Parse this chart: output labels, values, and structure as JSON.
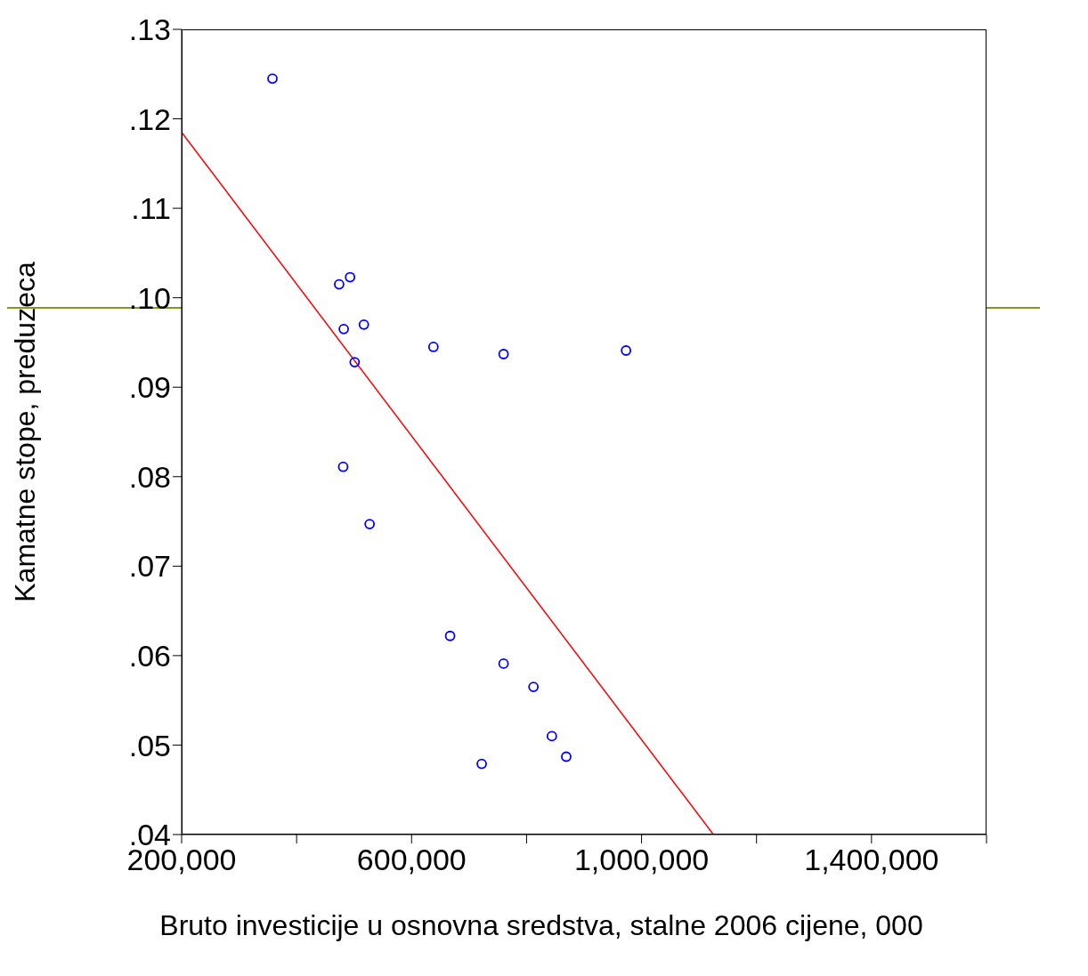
{
  "chart_data": {
    "type": "scatter",
    "xlabel": "Bruto investicije u osnovna sredstva, stalne 2006 cijene, 000",
    "ylabel": "Kamatne stope, preduzeca",
    "x": [
      358000,
      474000,
      493000,
      482000,
      517000,
      501000,
      638000,
      760000,
      973000,
      481000,
      527000,
      667000,
      760000,
      812000,
      844000,
      869000,
      722000
    ],
    "series": [
      {
        "color": "#0000ff",
        "marker": "circle",
        "values": [
          0.1245,
          0.1015,
          0.1023,
          0.0965,
          0.097,
          0.0928,
          0.0945,
          0.0937,
          0.0941,
          0.0811,
          0.0747,
          0.0622,
          0.0591,
          0.0565,
          0.051,
          0.0487,
          0.0479
        ]
      },
      {
        "type": "line",
        "color": "#ff0000",
        "x": [
          200000,
          1125000
        ],
        "values": [
          0.1185,
          0.04
        ],
        "line_style": "solid",
        "marker": "none"
      }
    ],
    "xlim": [
      200000,
      1600000
    ],
    "xticks": [
      {
        "value": 200000,
        "label": "200,000"
      },
      {
        "value": 400000,
        "label": null
      },
      {
        "value": 600000,
        "label": "600,000"
      },
      {
        "value": 800000,
        "label": null
      },
      {
        "value": 1000000,
        "label": "1,000,000"
      },
      {
        "value": 1200000,
        "label": null
      },
      {
        "value": 1400000,
        "label": "1,400,000"
      },
      {
        "value": 1600000,
        "label": null
      }
    ],
    "ylim": [
      0.04,
      0.13
    ],
    "yticks": [
      {
        "value": 0.04,
        "label": ".04"
      },
      {
        "value": 0.05,
        "label": ".05"
      },
      {
        "value": 0.06,
        "label": ".06"
      },
      {
        "value": 0.07,
        "label": ".07"
      },
      {
        "value": 0.08,
        "label": ".08"
      },
      {
        "value": 0.09,
        "label": ".09"
      },
      {
        "value": 0.1,
        "label": ".10"
      },
      {
        "value": 0.11,
        "label": ".11"
      },
      {
        "value": 0.12,
        "label": ".12"
      },
      {
        "value": 0.13,
        "label": ".13"
      }
    ]
  }
}
